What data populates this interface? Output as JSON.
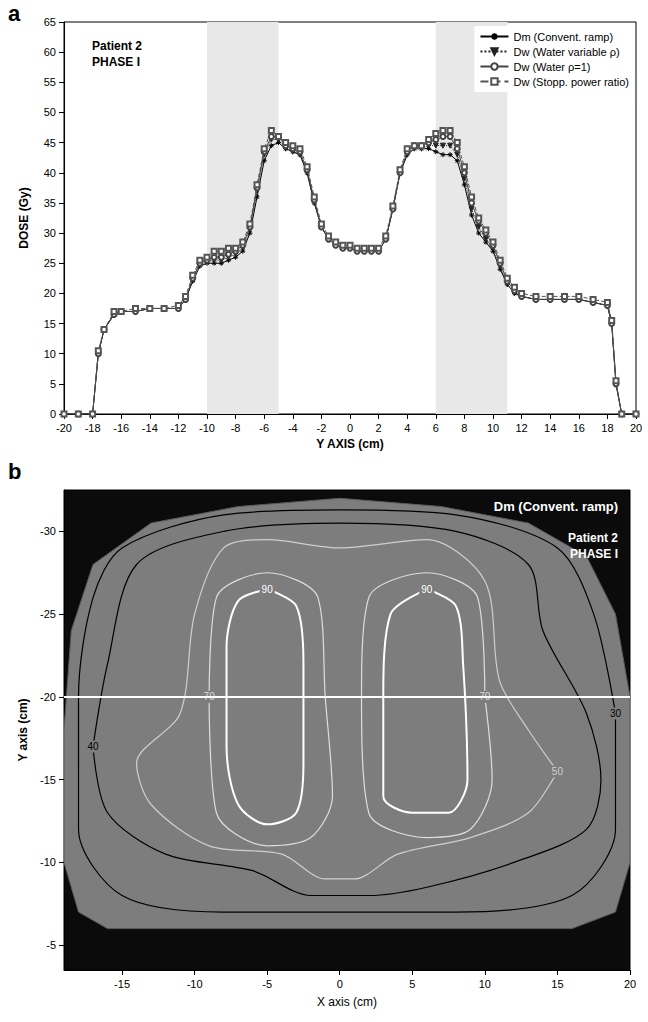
{
  "chart_data": [
    {
      "type": "line",
      "panel_label": "a",
      "annotations": [
        "Patient 2",
        "PHASE I"
      ],
      "x_label": "Y AXIS (cm)",
      "y_label": "DOSE (Gy)",
      "xlim": [
        -20,
        20
      ],
      "xticks": [
        -20,
        -18,
        -16,
        -14,
        -12,
        -10,
        -8,
        -6,
        -4,
        -2,
        0,
        2,
        4,
        6,
        8,
        10,
        12,
        14,
        16,
        18,
        20
      ],
      "ylim": [
        0,
        65
      ],
      "yticks": [
        0,
        5,
        10,
        15,
        20,
        25,
        30,
        35,
        40,
        45,
        50,
        55,
        60,
        65
      ],
      "grid": false,
      "legend": "top-right",
      "shaded_x_ranges": [
        [
          -10,
          -5
        ],
        [
          6,
          11
        ]
      ],
      "x": [
        -20,
        -19,
        -18,
        -17.6,
        -17.2,
        -16.5,
        -16,
        -15,
        -14,
        -13,
        -12,
        -11.5,
        -11,
        -10.5,
        -10,
        -9.5,
        -9,
        -8.5,
        -8,
        -7.5,
        -7,
        -6.5,
        -6,
        -5.5,
        -5,
        -4.5,
        -4,
        -3.5,
        -3,
        -2.5,
        -2,
        -1.5,
        -1,
        -0.5,
        0,
        0.5,
        1,
        1.5,
        2,
        2.5,
        3,
        3.5,
        4,
        4.5,
        5,
        5.5,
        6,
        6.5,
        7,
        7.5,
        8,
        8.5,
        9,
        9.5,
        10,
        10.5,
        11,
        11.5,
        12,
        13,
        14,
        15,
        16,
        17,
        18,
        18.3,
        18.6,
        19,
        20
      ],
      "series": [
        {
          "name": "Dm (Convent. ramp)",
          "color": "#000000",
          "marker": "asterisk",
          "line_style": "solid",
          "values": [
            0,
            0,
            0,
            10,
            14,
            16.5,
            17,
            17,
            17.5,
            17.5,
            17.5,
            19,
            22,
            24.5,
            25,
            25,
            25,
            25.5,
            26,
            27,
            30,
            36,
            42,
            44.5,
            45,
            44,
            43.5,
            43,
            40,
            35,
            31,
            29,
            28,
            27.5,
            27.5,
            27,
            27,
            27,
            27,
            29,
            34,
            40,
            43,
            44,
            44,
            44,
            43.5,
            43,
            43,
            42,
            38,
            33,
            30,
            28.5,
            27,
            24,
            21.5,
            20,
            19.5,
            19,
            19,
            19,
            19,
            18.5,
            18,
            15,
            5,
            0,
            0
          ]
        },
        {
          "name": "Dw (Water variable ρ)",
          "color": "#222222",
          "marker": "triangle-down",
          "line_style": "dotted",
          "values": [
            0,
            0,
            0,
            10,
            14,
            16.5,
            17,
            17,
            17.5,
            17.5,
            17.5,
            19,
            22.5,
            25,
            25.5,
            25.5,
            25.5,
            26,
            26.5,
            27.5,
            30.5,
            37,
            43,
            45.5,
            45.5,
            44,
            43.5,
            43,
            40,
            35,
            31,
            29,
            28,
            27.5,
            27.5,
            27,
            27,
            27,
            27,
            29,
            34,
            40,
            43,
            44,
            44,
            44.5,
            44.5,
            44.5,
            44.5,
            43,
            39,
            34,
            31,
            29,
            27.5,
            24.5,
            21.5,
            20,
            19.5,
            19,
            19,
            19,
            19,
            18.5,
            18,
            15,
            5,
            0,
            0
          ]
        },
        {
          "name": "Dw (Water ρ=1)",
          "color": "#444444",
          "marker": "circle",
          "line_style": "solid",
          "values": [
            0,
            0,
            0,
            10,
            14,
            16.5,
            17,
            17,
            17.5,
            17.5,
            17.5,
            19,
            22.5,
            25,
            25.5,
            26,
            26,
            26.5,
            27,
            28,
            31,
            37.5,
            43.5,
            46,
            46,
            44.5,
            44,
            43.5,
            40.5,
            35.5,
            31,
            29,
            28,
            27.5,
            27.5,
            27,
            27,
            27,
            27,
            29,
            34,
            40,
            43.5,
            44.5,
            44.5,
            45,
            45.5,
            46,
            46,
            44,
            40,
            35,
            32,
            30,
            28,
            25,
            22,
            20.5,
            19.5,
            19,
            19,
            19,
            19,
            18.5,
            18,
            15,
            5,
            0,
            0
          ]
        },
        {
          "name": "Dw (Stopp. power ratio)",
          "color": "#555555",
          "marker": "square",
          "line_style": "dashed",
          "values": [
            0,
            0,
            0,
            10.5,
            14,
            17,
            17,
            17.5,
            17.5,
            17.5,
            18,
            19.5,
            23,
            25.5,
            26,
            27,
            27,
            27.5,
            27.5,
            28.5,
            31.5,
            38,
            44,
            47,
            46,
            45,
            44.5,
            44,
            41,
            36,
            31.5,
            29.5,
            28.5,
            28,
            28,
            27.5,
            27.5,
            27.5,
            27.5,
            29.5,
            34.5,
            40.5,
            44,
            44.5,
            44.5,
            45.5,
            46.5,
            47,
            47,
            45,
            41,
            36,
            32.5,
            30.5,
            28.5,
            25.5,
            22.5,
            21,
            20,
            19.5,
            19.5,
            19.5,
            19.5,
            19,
            18.5,
            15.5,
            5.5,
            0,
            0
          ]
        }
      ]
    },
    {
      "type": "contour",
      "panel_label": "b",
      "title": "Dm (Convent. ramp)",
      "annotations": [
        "Patient 2",
        "PHASE I"
      ],
      "x_label": "X axis (cm)",
      "y_label": "Y axis (cm)",
      "xlim": [
        -19,
        20
      ],
      "xticks": [
        -15,
        -10,
        -5,
        0,
        5,
        10,
        15,
        20
      ],
      "ylim": [
        -3.5,
        -32.5
      ],
      "yticks": [
        -30,
        -25,
        -20,
        -15,
        -10,
        -5
      ],
      "grid": false,
      "profile_y": -20,
      "body_outline": [
        [
          -17,
          -28
        ],
        [
          -18.5,
          -24
        ],
        [
          -19,
          -18
        ],
        [
          -19,
          -10
        ],
        [
          -18,
          -7
        ],
        [
          -16,
          -6
        ],
        [
          16,
          -6
        ],
        [
          19,
          -7
        ],
        [
          20,
          -10
        ],
        [
          20,
          -20
        ],
        [
          19,
          -25
        ],
        [
          17,
          -28.5
        ],
        [
          13,
          -30.5
        ],
        [
          7,
          -31.5
        ],
        [
          0,
          -32
        ],
        [
          -7,
          -31.5
        ],
        [
          -13,
          -30.5
        ],
        [
          -17,
          -28
        ]
      ],
      "contours": [
        {
          "level": 30,
          "color": "#000000",
          "points": [
            [
              19,
              -19
            ],
            [
              19,
              -12
            ],
            [
              16,
              -8
            ],
            [
              8,
              -7
            ],
            [
              0,
              -7
            ],
            [
              -8,
              -7
            ],
            [
              -15,
              -8
            ],
            [
              -18,
              -12
            ],
            [
              -18,
              -20
            ],
            [
              -17,
              -26
            ],
            [
              -15,
              -29
            ],
            [
              -8,
              -31
            ],
            [
              0,
              -31.3
            ],
            [
              8,
              -31
            ],
            [
              15,
              -29
            ],
            [
              17.5,
              -25
            ],
            [
              19,
              -19
            ]
          ]
        },
        {
          "level": 40,
          "color": "#000000",
          "points": [
            [
              -17,
              -17
            ],
            [
              -16,
              -22
            ],
            [
              -14,
              -28
            ],
            [
              -8,
              -30
            ],
            [
              0,
              -30.5
            ],
            [
              8,
              -30
            ],
            [
              13,
              -28
            ],
            [
              14,
              -24
            ],
            [
              17,
              -19
            ],
            [
              18,
              -15
            ],
            [
              17,
              -12
            ],
            [
              12,
              -10
            ],
            [
              6,
              -8.5
            ],
            [
              2,
              -8
            ],
            [
              -2,
              -8
            ],
            [
              -6,
              -9.5
            ],
            [
              -12,
              -10.5
            ],
            [
              -16,
              -13
            ],
            [
              -17,
              -17
            ]
          ]
        },
        {
          "level": 50,
          "color": "#cfcfcf",
          "points": [
            [
              15,
              -15.5
            ],
            [
              13,
              -13
            ],
            [
              9,
              -11.5
            ],
            [
              4,
              -10.5
            ],
            [
              1,
              -9
            ],
            [
              -1,
              -9
            ],
            [
              -4,
              -10.5
            ],
            [
              -9,
              -11
            ],
            [
              -13,
              -13.5
            ],
            [
              -14,
              -16
            ],
            [
              -11,
              -19
            ],
            [
              -10,
              -25
            ],
            [
              -8,
              -29
            ],
            [
              -5,
              -29.5
            ],
            [
              0,
              -29
            ],
            [
              6,
              -29.5
            ],
            [
              10,
              -27
            ],
            [
              11,
              -21
            ],
            [
              13,
              -18
            ],
            [
              15,
              -15.5
            ]
          ]
        },
        {
          "level": 70,
          "color": "#dddddd",
          "points": [
            [
              -9,
              -20
            ],
            [
              -8.5,
              -26
            ],
            [
              -5,
              -27.5
            ],
            [
              -1.5,
              -26
            ],
            [
              -1,
              -20
            ],
            [
              -0.5,
              -14
            ],
            [
              -2,
              -11.5
            ],
            [
              -5,
              -11
            ],
            [
              -8.5,
              -13
            ],
            [
              -9,
              -20
            ]
          ]
        },
        {
          "level": 70,
          "color": "#dddddd",
          "points": [
            [
              10,
              -20
            ],
            [
              10.5,
              -15
            ],
            [
              9,
              -12
            ],
            [
              6,
              -11.5
            ],
            [
              2,
              -13
            ],
            [
              1.5,
              -20
            ],
            [
              2,
              -26
            ],
            [
              6,
              -27.5
            ],
            [
              9.5,
              -26
            ],
            [
              10,
              -20
            ]
          ]
        },
        {
          "level": 90,
          "color": "#ffffff",
          "points": [
            [
              -5,
              -26.5
            ],
            [
              -3,
              -25.5
            ],
            [
              -2.5,
              -22
            ],
            [
              -2.5,
              -16
            ],
            [
              -3,
              -13
            ],
            [
              -5,
              -12.3
            ],
            [
              -7,
              -13.5
            ],
            [
              -7.8,
              -17
            ],
            [
              -7.8,
              -23
            ],
            [
              -7,
              -25.8
            ],
            [
              -5,
              -26.5
            ]
          ]
        },
        {
          "level": 90,
          "color": "#ffffff",
          "points": [
            [
              6,
              -26.5
            ],
            [
              8,
              -25.5
            ],
            [
              8.5,
              -22
            ],
            [
              8.8,
              -15
            ],
            [
              7.5,
              -13
            ],
            [
              5,
              -13
            ],
            [
              3,
              -14
            ],
            [
              3,
              -20
            ],
            [
              3.5,
              -25
            ],
            [
              6,
              -26.5
            ]
          ]
        }
      ]
    }
  ]
}
